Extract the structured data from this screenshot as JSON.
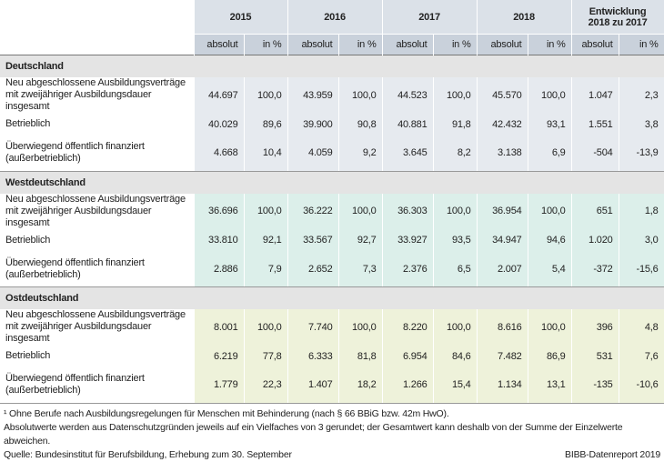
{
  "table": {
    "years": [
      "2015",
      "2016",
      "2017",
      "2018"
    ],
    "change_header": "Entwicklung 2018 zu 2017",
    "sub_headers": [
      "absolut",
      "in %"
    ],
    "sections": [
      {
        "title": "Deutschland",
        "rows": [
          {
            "label": "Neu abgeschlossene Ausbildungsverträge mit zweijähriger Ausbildungsdauer insgesamt",
            "values": [
              "44.697",
              "100,0",
              "43.959",
              "100,0",
              "44.523",
              "100,0",
              "45.570",
              "100,0",
              "1.047",
              "2,3"
            ]
          },
          {
            "label": "Betrieblich",
            "values": [
              "40.029",
              "89,6",
              "39.900",
              "90,8",
              "40.881",
              "91,8",
              "42.432",
              "93,1",
              "1.551",
              "3,8"
            ]
          },
          {
            "label": "Überwiegend öffentlich finanziert (außerbetrieblich)",
            "values": [
              "4.668",
              "10,4",
              "4.059",
              "9,2",
              "3.645",
              "8,2",
              "3.138",
              "6,9",
              "-504",
              "-13,9"
            ]
          }
        ]
      },
      {
        "title": "Westdeutschland",
        "rows": [
          {
            "label": "Neu abgeschlossene Ausbildungsverträge mit zweijähriger Ausbildungsdauer insgesamt",
            "values": [
              "36.696",
              "100,0",
              "36.222",
              "100,0",
              "36.303",
              "100,0",
              "36.954",
              "100,0",
              "651",
              "1,8"
            ]
          },
          {
            "label": "Betrieblich",
            "values": [
              "33.810",
              "92,1",
              "33.567",
              "92,7",
              "33.927",
              "93,5",
              "34.947",
              "94,6",
              "1.020",
              "3,0"
            ]
          },
          {
            "label": "Überwiegend öffentlich finanziert (außerbetrieblich)",
            "values": [
              "2.886",
              "7,9",
              "2.652",
              "7,3",
              "2.376",
              "6,5",
              "2.007",
              "5,4",
              "-372",
              "-15,6"
            ]
          }
        ]
      },
      {
        "title": "Ostdeutschland",
        "rows": [
          {
            "label": "Neu abgeschlossene Ausbildungsverträge mit zweijähriger Ausbildungsdauer insgesamt",
            "values": [
              "8.001",
              "100,0",
              "7.740",
              "100,0",
              "8.220",
              "100,0",
              "8.616",
              "100,0",
              "396",
              "4,8"
            ]
          },
          {
            "label": "Betrieblich",
            "values": [
              "6.219",
              "77,8",
              "6.333",
              "81,8",
              "6.954",
              "84,6",
              "7.482",
              "86,9",
              "531",
              "7,6"
            ]
          },
          {
            "label": "Überwiegend öffentlich finanziert (außerbetrieblich)",
            "values": [
              "1.779",
              "22,3",
              "1.407",
              "18,2",
              "1.266",
              "15,4",
              "1.134",
              "13,1",
              "-135",
              "-10,6"
            ]
          }
        ]
      }
    ]
  },
  "footnotes": [
    "¹ Ohne Berufe nach Ausbildungsregelungen für Menschen mit Behinderung (nach § 66 BBiG bzw. 42m HwO).",
    "Absolutwerte werden aus Datenschutzgründen jeweils auf ein Vielfaches von 3 gerundet; der Gesamtwert kann deshalb von der Summe der Einzelwerte abweichen."
  ],
  "source": "Quelle: Bundesinstitut für Berufsbildung, Erhebung zum 30. September",
  "credit": "BIBB-Datenreport 2019"
}
